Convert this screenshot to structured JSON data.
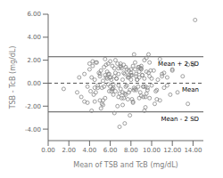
{
  "chart_data": {
    "type": "scatter",
    "xlabel": "Mean of TSB and TcB (mg/dL)",
    "ylabel": "TSB - TcB (mg/dL)",
    "xlim": [
      0,
      15
    ],
    "ylim": [
      -5,
      6
    ],
    "xticks": [
      {
        "value": 0,
        "label": "0.00"
      },
      {
        "value": 2,
        "label": "2.00"
      },
      {
        "value": 4,
        "label": "4.00"
      },
      {
        "value": 6,
        "label": "6.00"
      },
      {
        "value": 8,
        "label": "8.00"
      },
      {
        "value": 10,
        "label": "10.00"
      },
      {
        "value": 12,
        "label": "12.00"
      },
      {
        "value": 14,
        "label": "14.00"
      }
    ],
    "yticks": [
      {
        "value": -4,
        "label": "-4.00"
      },
      {
        "value": -2,
        "label": "-2.00"
      },
      {
        "value": 0,
        "label": "0.00"
      },
      {
        "value": 2,
        "label": "2.00"
      },
      {
        "value": 4,
        "label": "4.00"
      },
      {
        "value": 6,
        "label": "6.00"
      }
    ],
    "grid": false,
    "color": "#888888",
    "marker": "open circle",
    "annotations": [
      {
        "y": 2.3,
        "label": "Mean + 2 SD",
        "line_style": "solid",
        "color": "#555555"
      },
      {
        "y": 0.0,
        "label": "Mean",
        "line_style": "dashed",
        "color": "#555555"
      },
      {
        "y": -2.5,
        "label": "Mean - 2 SD",
        "line_style": "solid",
        "color": "#555555"
      }
    ],
    "x": [
      1.5,
      3.2,
      3.5,
      3.8,
      4.0,
      4.1,
      4.2,
      4.3,
      4.4,
      4.5,
      4.6,
      4.7,
      4.8,
      4.9,
      5.0,
      5.1,
      5.2,
      5.3,
      5.4,
      5.5,
      5.6,
      5.7,
      5.8,
      5.9,
      6.0,
      6.1,
      6.2,
      6.3,
      6.4,
      6.5,
      6.6,
      6.7,
      6.8,
      6.9,
      7.0,
      7.1,
      7.2,
      7.3,
      7.4,
      7.5,
      7.6,
      7.7,
      7.8,
      7.9,
      8.0,
      8.1,
      8.2,
      8.3,
      8.4,
      8.5,
      8.6,
      8.7,
      8.8,
      8.9,
      9.0,
      9.1,
      9.2,
      9.3,
      9.4,
      9.5,
      9.6,
      9.7,
      9.8,
      10.0,
      10.2,
      10.4,
      10.6,
      10.8,
      11.0,
      11.2,
      11.5,
      11.8,
      12.0,
      12.5,
      13.0,
      13.5,
      14.2,
      4.5,
      5.0,
      5.2,
      5.5,
      5.8,
      6.0,
      6.2,
      6.5,
      6.8,
      7.0,
      7.2,
      7.5,
      7.8,
      8.0,
      8.2,
      8.5,
      8.8,
      9.0,
      9.2,
      9.5,
      4.8,
      5.3,
      5.7,
      6.1,
      6.4,
      6.7,
      7.1,
      7.4,
      7.7,
      8.1,
      8.4,
      8.7,
      9.1,
      9.4,
      9.7,
      4.2,
      4.6,
      5.1,
      5.6,
      6.0,
      6.3,
      6.6,
      7.0,
      7.3,
      7.6,
      8.0,
      8.3,
      8.6,
      9.0,
      9.3,
      9.6,
      3.5,
      4.0,
      4.5,
      5.0,
      5.5,
      6.0,
      6.5,
      7.0,
      7.5,
      8.0,
      8.5,
      9.0,
      9.5,
      10.0,
      10.5,
      11.0,
      11.5,
      12.0,
      2.8,
      3.0,
      3.8,
      4.3,
      5.4,
      5.9,
      6.4,
      6.9,
      7.4,
      7.9,
      8.4,
      8.9,
      9.4,
      9.9,
      10.5,
      11.2,
      13.5,
      14.0,
      6.2,
      6.8,
      7.2,
      7.8,
      8.2,
      8.8,
      9.2,
      9.8,
      5.3,
      5.8,
      6.3,
      6.8,
      7.3,
      7.8,
      8.3,
      8.8,
      9.3,
      9.8,
      10.3,
      10.8
    ],
    "values": [
      -0.5,
      -1.2,
      0.8,
      -0.3,
      1.2,
      -0.7,
      0.5,
      1.5,
      -1.0,
      0.3,
      -0.8,
      1.8,
      -0.2,
      0.9,
      -1.5,
      1.1,
      -0.4,
      0.2,
      1.4,
      0.7,
      1.6,
      0.4,
      0.8,
      -0.7,
      0.5,
      0.3,
      1.5,
      -1.0,
      1.3,
      0.9,
      0.4,
      1.7,
      -1.2,
      -0.9,
      1.4,
      -1.3,
      0.3,
      1.6,
      0.8,
      -0.3,
      1.2,
      -1.4,
      1.1,
      -0.6,
      0.9,
      0.7,
      1.5,
      -0.4,
      1.2,
      0.8,
      0.3,
      1.4,
      0.5,
      -0.8,
      1.3,
      0.7,
      -1.2,
      0.4,
      -0.3,
      1.0,
      -0.6,
      0.9,
      -1.3,
      -0.2,
      1.1,
      -0.7,
      0.3,
      -1.5,
      0.8,
      -0.4,
      0.5,
      -1.0,
      1.2,
      -0.8,
      0.6,
      1.6,
      5.5,
      -1.6,
      0.6,
      -1.8,
      2.1,
      -0.1,
      1.9,
      -0.5,
      2.0,
      -0.2,
      1.7,
      -1.9,
      1.4,
      -0.8,
      0.7,
      -1.7,
      0.6,
      -1.3,
      1.5,
      -0.3,
      2.2,
      -0.4,
      -1.5,
      1.0,
      -0.7,
      0.6,
      -2.0,
      1.3,
      -0.9,
      0.5,
      -1.4,
      1.8,
      -0.3,
      0.7,
      -1.2,
      2.5,
      -2.4,
      1.8,
      -2.2,
      0.5,
      -0.3,
      -0.1,
      0.4,
      -0.5,
      0.9,
      -0.2,
      1.2,
      -0.6,
      0.3,
      -1.1,
      2.0,
      -0.4,
      -1.6,
      1.7,
      -0.4,
      0.8,
      -1.3,
      0.5,
      -0.7,
      1.5,
      -1.0,
      0.3,
      -0.6,
      1.2,
      -0.9,
      0.4,
      -1.4,
      0.6,
      -0.2,
      1.1,
      -0.8,
      0.5,
      -1.7,
      1.9,
      -0.3,
      0.8,
      -2.6,
      -3.8,
      -3.5,
      -2.8,
      -0.5,
      1.3,
      -2.1,
      1.1,
      -0.6,
      0.9,
      -1.8,
      1.6,
      -0.5,
      1.3,
      -0.8,
      0.7,
      -1.6,
      1.4,
      -0.3,
      0.6,
      -1.9,
      1.7,
      -0.4,
      0.8,
      -1.3,
      0.5,
      2.5,
      1.0,
      -2.4,
      1.8,
      -1.8,
      2.1
    ]
  }
}
